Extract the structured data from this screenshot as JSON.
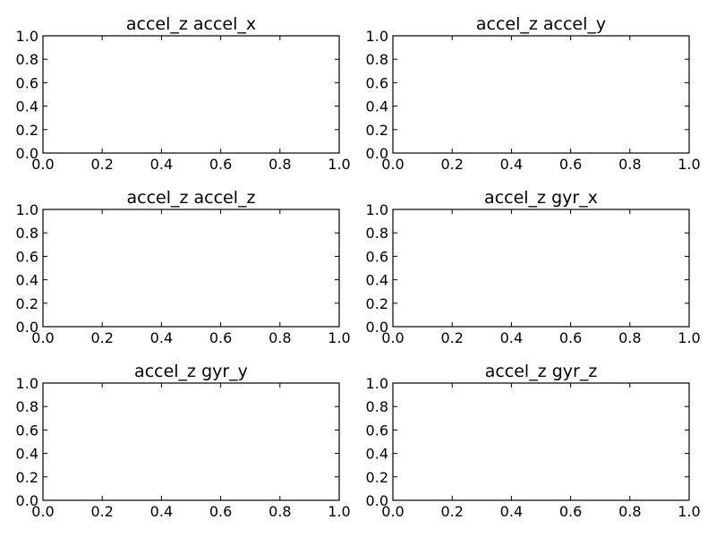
{
  "chart_data": [
    {
      "type": "line",
      "title": "accel_z accel_x",
      "xlabel": "",
      "ylabel": "",
      "xlim": [
        0.0,
        1.0
      ],
      "ylim": [
        0.0,
        1.0
      ],
      "xticks": [
        "0.0",
        "0.2",
        "0.4",
        "0.6",
        "0.8",
        "1.0"
      ],
      "yticks": [
        "0.0",
        "0.2",
        "0.4",
        "0.6",
        "0.8",
        "1.0"
      ],
      "grid": false,
      "series": []
    },
    {
      "type": "line",
      "title": "accel_z accel_y",
      "xlabel": "",
      "ylabel": "",
      "xlim": [
        0.0,
        1.0
      ],
      "ylim": [
        0.0,
        1.0
      ],
      "xticks": [
        "0.0",
        "0.2",
        "0.4",
        "0.6",
        "0.8",
        "1.0"
      ],
      "yticks": [
        "0.0",
        "0.2",
        "0.4",
        "0.6",
        "0.8",
        "1.0"
      ],
      "grid": false,
      "series": []
    },
    {
      "type": "line",
      "title": "accel_z accel_z",
      "xlabel": "",
      "ylabel": "",
      "xlim": [
        0.0,
        1.0
      ],
      "ylim": [
        0.0,
        1.0
      ],
      "xticks": [
        "0.0",
        "0.2",
        "0.4",
        "0.6",
        "0.8",
        "1.0"
      ],
      "yticks": [
        "0.0",
        "0.2",
        "0.4",
        "0.6",
        "0.8",
        "1.0"
      ],
      "grid": false,
      "series": []
    },
    {
      "type": "line",
      "title": "accel_z gyr_x",
      "xlabel": "",
      "ylabel": "",
      "xlim": [
        0.0,
        1.0
      ],
      "ylim": [
        0.0,
        1.0
      ],
      "xticks": [
        "0.0",
        "0.2",
        "0.4",
        "0.6",
        "0.8",
        "1.0"
      ],
      "yticks": [
        "0.0",
        "0.2",
        "0.4",
        "0.6",
        "0.8",
        "1.0"
      ],
      "grid": false,
      "series": []
    },
    {
      "type": "line",
      "title": "accel_z gyr_y",
      "xlabel": "",
      "ylabel": "",
      "xlim": [
        0.0,
        1.0
      ],
      "ylim": [
        0.0,
        1.0
      ],
      "xticks": [
        "0.0",
        "0.2",
        "0.4",
        "0.6",
        "0.8",
        "1.0"
      ],
      "yticks": [
        "0.0",
        "0.2",
        "0.4",
        "0.6",
        "0.8",
        "1.0"
      ],
      "grid": false,
      "series": []
    },
    {
      "type": "line",
      "title": "accel_z gyr_z",
      "xlabel": "",
      "ylabel": "",
      "xlim": [
        0.0,
        1.0
      ],
      "ylim": [
        0.0,
        1.0
      ],
      "xticks": [
        "0.0",
        "0.2",
        "0.4",
        "0.6",
        "0.8",
        "1.0"
      ],
      "yticks": [
        "0.0",
        "0.2",
        "0.4",
        "0.6",
        "0.8",
        "1.0"
      ],
      "grid": false,
      "series": []
    }
  ]
}
